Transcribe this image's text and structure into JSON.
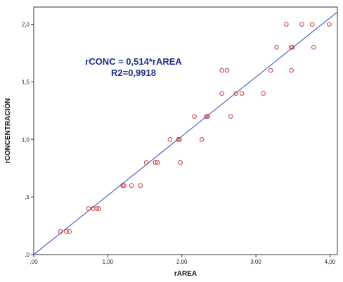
{
  "chart_data": {
    "type": "scatter",
    "xlabel": "rAREA",
    "ylabel": "rCONCENTRACIÓN",
    "xlim": [
      0,
      4.1
    ],
    "ylim": [
      0,
      2.15
    ],
    "x_ticks": [
      0,
      1,
      2,
      3,
      4
    ],
    "x_tick_labels": [
      ",00",
      "1,00",
      "2,00",
      "3,00",
      "4,00"
    ],
    "y_ticks": [
      0,
      0.5,
      1,
      1.5,
      2
    ],
    "y_tick_labels": [
      ",0",
      ",5",
      "1,0",
      "1,5",
      "2,0"
    ],
    "grid": false,
    "legend": "none",
    "annotation": {
      "lines": [
        "rCONC = 0,514*rAREA",
        "R2=0,9918"
      ],
      "color": "#1f2f86"
    },
    "regression": {
      "slope": 0.514,
      "intercept": 0,
      "color": "#4b67c9"
    },
    "marker_color": "#c83a3a",
    "series": [
      {
        "x": [
          0.36,
          0.44,
          0.48,
          0.74,
          0.8,
          0.85,
          0.88,
          1.2,
          1.22,
          1.32,
          1.44,
          1.52,
          1.64,
          1.67,
          1.84,
          1.95,
          1.97,
          1.98,
          2.27,
          2.17,
          2.33,
          2.35,
          2.66,
          2.54,
          2.54,
          2.61,
          2.73,
          2.81,
          3.1,
          3.2,
          3.28,
          3.41,
          3.48,
          3.49,
          3.48,
          3.62,
          3.76,
          3.78,
          3.99
        ],
        "y": [
          0.2,
          0.2,
          0.2,
          0.4,
          0.4,
          0.4,
          0.4,
          0.6,
          0.6,
          0.6,
          0.6,
          0.8,
          0.8,
          0.8,
          1.0,
          1.0,
          1.0,
          0.8,
          1.0,
          1.2,
          1.2,
          1.2,
          1.2,
          1.4,
          1.6,
          1.6,
          1.4,
          1.4,
          1.4,
          1.6,
          1.8,
          2.0,
          1.8,
          1.8,
          1.6,
          2.0,
          2.0,
          1.8,
          2.0
        ]
      }
    ]
  }
}
